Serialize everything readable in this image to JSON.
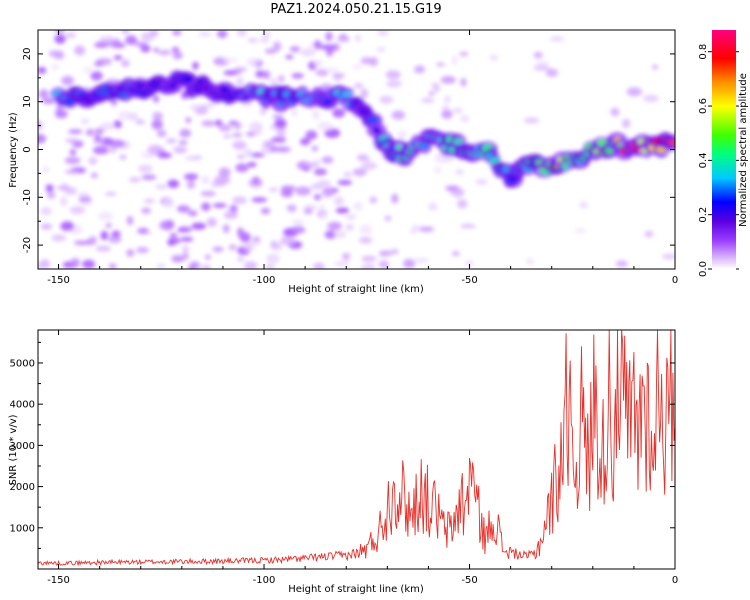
{
  "title": "PAZ1.2024.050.21.15.G19",
  "chart_data": [
    {
      "type": "heatmap",
      "title": "PAZ1.2024.050.21.15.G19",
      "xlabel": "Height of straight line (km)",
      "ylabel": "Frequency (Hz)",
      "xlim": [
        -155,
        0
      ],
      "ylim": [
        -25,
        25
      ],
      "x_ticks": [
        -150,
        -100,
        -50,
        0
      ],
      "y_ticks": [
        -20,
        -10,
        0,
        10,
        20
      ],
      "colorbar": {
        "label": "Normalized spectral amplitude",
        "range": [
          0,
          0.88
        ],
        "ticks": [
          0.0,
          0.2,
          0.4,
          0.6,
          0.8
        ],
        "colors": [
          "#ffffff",
          "#e0c0ff",
          "#9a3cff",
          "#5a00e0",
          "#0000ff",
          "#00c8ff",
          "#00ff80",
          "#40ff00",
          "#ffff00",
          "#ff9000",
          "#ff0000",
          "#ff0080"
        ]
      },
      "ridge_frequency": [
        {
          "x": -145,
          "y": 11
        },
        {
          "x": -130,
          "y": 13
        },
        {
          "x": -120,
          "y": 14
        },
        {
          "x": -110,
          "y": 12
        },
        {
          "x": -100,
          "y": 11
        },
        {
          "x": -90,
          "y": 10.5
        },
        {
          "x": -80,
          "y": 11
        },
        {
          "x": -75,
          "y": 7
        },
        {
          "x": -70,
          "y": 0
        },
        {
          "x": -65,
          "y": -1
        },
        {
          "x": -60,
          "y": 2
        },
        {
          "x": -55,
          "y": 1
        },
        {
          "x": -50,
          "y": 0
        },
        {
          "x": -45,
          "y": -1
        },
        {
          "x": -40,
          "y": -6
        },
        {
          "x": -35,
          "y": -3
        },
        {
          "x": -30,
          "y": -4
        },
        {
          "x": -25,
          "y": -2
        },
        {
          "x": -20,
          "y": 0
        },
        {
          "x": -15,
          "y": 1
        },
        {
          "x": -10,
          "y": 0
        },
        {
          "x": -5,
          "y": 1
        },
        {
          "x": 0,
          "y": 1
        }
      ],
      "ridge_amplitude": [
        {
          "x": -145,
          "y": 0.3
        },
        {
          "x": -130,
          "y": 0.25
        },
        {
          "x": -120,
          "y": 0.25
        },
        {
          "x": -110,
          "y": 0.2
        },
        {
          "x": -100,
          "y": 0.35
        },
        {
          "x": -90,
          "y": 0.3
        },
        {
          "x": -80,
          "y": 0.35
        },
        {
          "x": -75,
          "y": 0.2
        },
        {
          "x": -70,
          "y": 0.35
        },
        {
          "x": -65,
          "y": 0.4
        },
        {
          "x": -60,
          "y": 0.35
        },
        {
          "x": -55,
          "y": 0.4
        },
        {
          "x": -50,
          "y": 0.35
        },
        {
          "x": -45,
          "y": 0.4
        },
        {
          "x": -40,
          "y": 0.3
        },
        {
          "x": -35,
          "y": 0.4
        },
        {
          "x": -30,
          "y": 0.6
        },
        {
          "x": -25,
          "y": 0.45
        },
        {
          "x": -20,
          "y": 0.5
        },
        {
          "x": -15,
          "y": 0.55
        },
        {
          "x": -10,
          "y": 0.8
        },
        {
          "x": -5,
          "y": 0.7
        },
        {
          "x": 0,
          "y": 0.8
        }
      ]
    },
    {
      "type": "line",
      "xlabel": "Height of straight line (km)",
      "ylabel": "SNR (10 * v/v)",
      "xlim": [
        -155,
        0
      ],
      "ylim": [
        0,
        5800
      ],
      "x_ticks": [
        -150,
        -100,
        -50,
        0
      ],
      "y_ticks": [
        1000,
        2000,
        3000,
        4000,
        5000
      ],
      "color": "#e8302a",
      "series": [
        {
          "x": [
            -155,
            -150,
            -140,
            -130,
            -120,
            -110,
            -100,
            -95,
            -90,
            -85,
            -80,
            -77,
            -75,
            -72,
            -70,
            -68,
            -66,
            -64,
            -62,
            -60,
            -58,
            -56,
            -54,
            -52,
            -51,
            -50,
            -48,
            -46,
            -44,
            -42,
            -40,
            -38,
            -36,
            -34,
            -33,
            -32,
            -31,
            -30,
            -29,
            -28,
            -27,
            -26,
            -25.5,
            -25,
            -24,
            -23,
            -22,
            -21,
            -20,
            -19,
            -18,
            -17,
            -16,
            -15,
            -14,
            -13.5,
            -13,
            -12,
            -11,
            -10,
            -9,
            -8,
            -7,
            -6,
            -5,
            -4,
            -3,
            -2,
            -1,
            0
          ],
          "y": [
            150,
            140,
            160,
            170,
            180,
            190,
            210,
            230,
            260,
            300,
            330,
            400,
            480,
            900,
            1500,
            2100,
            1700,
            1300,
            2000,
            1600,
            1400,
            900,
            1000,
            1800,
            1200,
            2600,
            1400,
            700,
            1400,
            500,
            400,
            350,
            300,
            400,
            600,
            900,
            1300,
            1600,
            2200,
            2600,
            3300,
            4200,
            5800,
            2600,
            2700,
            3700,
            3200,
            2400,
            3900,
            4200,
            2300,
            3300,
            4700,
            2800,
            5700,
            3000,
            4300,
            3700,
            3400,
            3800,
            2900,
            4500,
            3600,
            4000,
            2400,
            5300,
            3800,
            3500,
            4200,
            4800
          ]
        }
      ]
    }
  ]
}
